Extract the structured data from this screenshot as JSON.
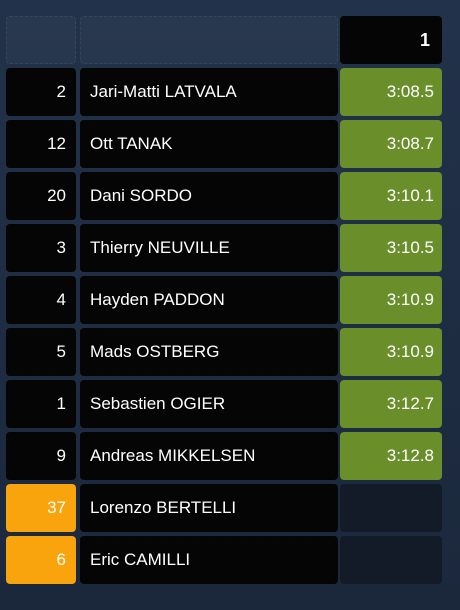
{
  "header": {
    "stage_label": "1"
  },
  "colors": {
    "background": "#1c2a3f",
    "cell": "#050505",
    "time_highlight": "#6a8f2a",
    "number_highlight": "#f9a40d",
    "empty_time": "#131b28"
  },
  "rows": [
    {
      "number": "2",
      "driver": "Jari-Matti LATVALA",
      "time": "3:08.5",
      "number_highlight": false
    },
    {
      "number": "12",
      "driver": "Ott TANAK",
      "time": "3:08.7",
      "number_highlight": false
    },
    {
      "number": "20",
      "driver": "Dani SORDO",
      "time": "3:10.1",
      "number_highlight": false
    },
    {
      "number": "3",
      "driver": "Thierry NEUVILLE",
      "time": "3:10.5",
      "number_highlight": false
    },
    {
      "number": "4",
      "driver": "Hayden PADDON",
      "time": "3:10.9",
      "number_highlight": false
    },
    {
      "number": "5",
      "driver": "Mads OSTBERG",
      "time": "3:10.9",
      "number_highlight": false
    },
    {
      "number": "1",
      "driver": "Sebastien OGIER",
      "time": "3:12.7",
      "number_highlight": false
    },
    {
      "number": "9",
      "driver": "Andreas MIKKELSEN",
      "time": "3:12.8",
      "number_highlight": false
    },
    {
      "number": "37",
      "driver": "Lorenzo BERTELLI",
      "time": "",
      "number_highlight": true
    },
    {
      "number": "6",
      "driver": "Eric CAMILLI",
      "time": "",
      "number_highlight": true
    }
  ]
}
